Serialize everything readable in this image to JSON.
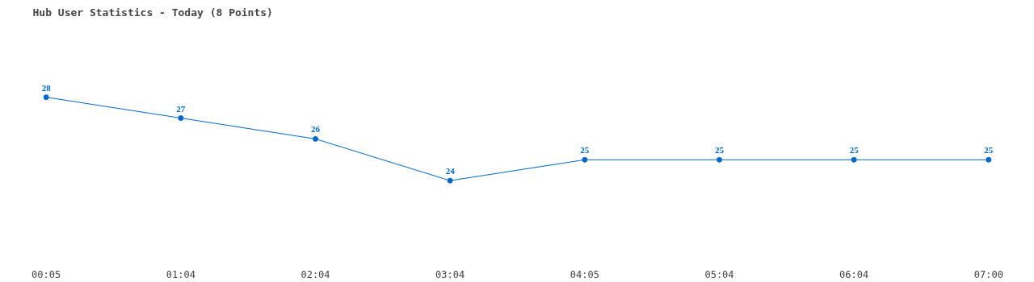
{
  "chart_data": {
    "type": "line",
    "title": "Hub User Statistics - Today (8 Points)",
    "categories": [
      "00:05",
      "01:04",
      "02:04",
      "03:04",
      "04:05",
      "05:04",
      "06:04",
      "07:00"
    ],
    "values": [
      28,
      27,
      26,
      24,
      25,
      25,
      25,
      25
    ],
    "color": "#0066cc",
    "marker": "circle",
    "data_labels": true
  }
}
